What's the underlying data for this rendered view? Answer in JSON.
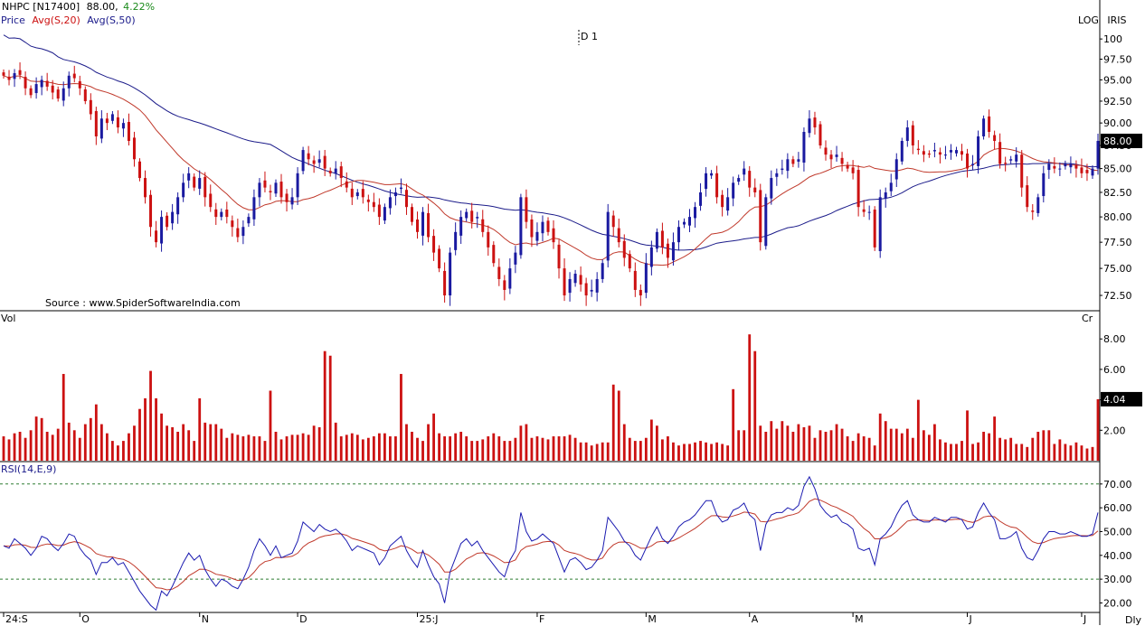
{
  "header": {
    "symbol": "NHPC [N17400]",
    "price": "88.00,",
    "change": "4.22%",
    "change_color": "#1a8a1a",
    "legend_price": "Price",
    "legend_avg20": "Avg(S,20)",
    "legend_avg50": "Avg(S,50)",
    "scale_log": "LOG",
    "brand": "IRIS",
    "marker": "D 1",
    "source": "Source : www.SpiderSoftwareIndia.com"
  },
  "colors": {
    "up": "#1a1aa0",
    "down": "#cc1111",
    "avg20": "#c0392b",
    "avg50": "#1c1c8a",
    "volume": "#cc1111",
    "rsi": "#1a1ab0",
    "rsi_signal": "#c0392b",
    "level_line": "#2e7d32"
  },
  "panels": {
    "volume_label": "Vol",
    "volume_unit": "Cr",
    "rsi_label": "RSI(14,E,9)",
    "frequency": "Dly"
  },
  "chart_data": {
    "type": "candlestick",
    "price_axis": {
      "scale": "log",
      "ticks": [
        "100",
        "97.50",
        "95.00",
        "92.50",
        "90.00",
        "87.50",
        "85.00",
        "82.50",
        "80.00",
        "77.50",
        "75.00",
        "72.50"
      ],
      "range": [
        71.2,
        101.5
      ],
      "last_price_label": "88.00"
    },
    "volume_axis": {
      "ticks": [
        "8.00",
        "6.00",
        "4.00",
        "2.00"
      ],
      "range": [
        0,
        9.2
      ],
      "last_value_label": "4.04"
    },
    "rsi_axis": {
      "ticks": [
        "70.00",
        "60.00",
        "50.00",
        "40.00",
        "30.00",
        "20.00"
      ],
      "range": [
        16,
        76
      ],
      "levels": [
        70,
        30
      ]
    },
    "x_labels": [
      {
        "label": "24:S",
        "index": 0
      },
      {
        "label": "O",
        "index": 14
      },
      {
        "label": "N",
        "index": 36
      },
      {
        "label": "D",
        "index": 54
      },
      {
        "label": "25:J",
        "index": 76
      },
      {
        "label": "F",
        "index": 98
      },
      {
        "label": "M",
        "index": 118
      },
      {
        "label": "A",
        "index": 137
      },
      {
        "label": "M",
        "index": 156
      },
      {
        "label": "J",
        "index": 177
      },
      {
        "label": "J",
        "index": 198
      }
    ],
    "close": [
      95.5,
      95.0,
      95.8,
      95.6,
      94.0,
      93.2,
      94.5,
      95.0,
      94.2,
      93.5,
      92.8,
      94.0,
      95.5,
      95.2,
      94.0,
      92.5,
      91.0,
      88.5,
      90.5,
      90.0,
      91.0,
      89.5,
      90.0,
      88.0,
      86.0,
      84.0,
      82.0,
      79.0,
      77.5,
      80.0,
      79.0,
      80.5,
      82.0,
      83.5,
      84.5,
      83.0,
      84.0,
      82.0,
      81.0,
      80.0,
      80.5,
      80.0,
      79.0,
      78.0,
      79.0,
      80.0,
      82.0,
      83.5,
      83.0,
      82.5,
      83.5,
      82.0,
      81.5,
      82.0,
      84.5,
      87.0,
      86.0,
      85.5,
      86.0,
      85.0,
      84.5,
      85.0,
      84.0,
      83.0,
      82.0,
      82.5,
      82.0,
      81.5,
      81.0,
      80.0,
      81.0,
      82.0,
      82.5,
      83.0,
      81.0,
      79.5,
      78.5,
      80.5,
      78.0,
      76.5,
      75.0,
      72.5,
      76.5,
      78.5,
      80.0,
      80.5,
      79.5,
      80.0,
      78.5,
      77.0,
      75.5,
      74.0,
      73.0,
      75.0,
      76.5,
      82.0,
      79.5,
      78.0,
      78.5,
      79.5,
      78.5,
      77.5,
      75.0,
      72.5,
      74.0,
      74.5,
      73.5,
      72.5,
      73.0,
      74.0,
      75.5,
      80.5,
      79.0,
      77.5,
      76.0,
      75.0,
      73.0,
      72.5,
      75.5,
      77.0,
      78.5,
      77.0,
      76.0,
      77.5,
      79.0,
      79.5,
      80.0,
      81.0,
      82.5,
      84.5,
      84.5,
      82.0,
      81.0,
      82.0,
      83.5,
      84.0,
      85.0,
      83.0,
      82.5,
      77.5,
      82.0,
      84.0,
      84.5,
      85.0,
      86.0,
      85.5,
      86.0,
      89.0,
      90.5,
      89.5,
      87.5,
      86.5,
      86.0,
      86.5,
      85.5,
      85.0,
      84.5,
      81.0,
      80.5,
      80.5,
      77.0,
      82.0,
      82.5,
      83.5,
      86.0,
      88.0,
      89.5,
      87.5,
      87.0,
      86.5,
      86.5,
      87.0,
      86.5,
      86.5,
      87.0,
      87.0,
      86.5,
      85.0,
      85.5,
      88.5,
      90.5,
      89.0,
      88.0,
      85.5,
      85.5,
      86.0,
      86.5,
      83.0,
      81.0,
      80.5,
      82.0,
      84.5,
      85.5,
      85.0,
      85.0,
      85.5,
      85.5,
      85.0,
      84.5,
      84.5,
      85.0,
      88.0
    ],
    "volume": [
      1.6,
      1.4,
      1.8,
      1.9,
      1.5,
      2.0,
      2.9,
      2.8,
      1.9,
      1.7,
      2.1,
      5.7,
      2.5,
      2.0,
      1.5,
      2.4,
      2.8,
      3.7,
      2.4,
      1.8,
      1.3,
      1.0,
      1.3,
      1.8,
      2.3,
      3.4,
      4.1,
      5.9,
      4.1,
      3.1,
      2.3,
      2.2,
      1.9,
      2.4,
      2.0,
      1.3,
      4.1,
      2.5,
      2.4,
      2.4,
      2.1,
      1.5,
      1.8,
      1.7,
      1.6,
      1.7,
      1.6,
      1.6,
      1.3,
      4.6,
      1.9,
      1.4,
      1.6,
      1.7,
      1.7,
      1.8,
      1.7,
      2.3,
      2.2,
      7.2,
      6.9,
      2.5,
      1.6,
      1.7,
      1.8,
      1.7,
      1.4,
      1.5,
      1.6,
      1.8,
      1.8,
      1.6,
      1.6,
      5.7,
      2.4,
      1.9,
      1.5,
      1.3,
      2.4,
      3.1,
      1.8,
      1.6,
      1.6,
      1.8,
      1.9,
      1.6,
      1.3,
      1.3,
      1.4,
      1.6,
      1.8,
      1.6,
      1.3,
      1.3,
      1.5,
      2.3,
      2.4,
      1.5,
      1.6,
      1.5,
      1.4,
      1.6,
      1.6,
      1.6,
      1.7,
      1.5,
      1.2,
      1.2,
      1.0,
      1.1,
      1.2,
      1.2,
      5.0,
      4.6,
      2.4,
      1.5,
      1.3,
      1.3,
      1.5,
      2.7,
      2.3,
      1.4,
      1.6,
      1.2,
      1.0,
      1.1,
      1.1,
      1.2,
      1.3,
      1.2,
      1.1,
      1.2,
      1.1,
      1.0,
      4.7,
      2.0,
      2.0,
      8.3,
      7.2,
      2.3,
      1.9,
      2.6,
      2.1,
      2.6,
      2.3,
      1.9,
      2.4,
      2.2,
      2.3,
      1.5,
      2.0,
      1.9,
      2.0,
      2.4,
      2.1,
      1.6,
      1.3,
      1.8,
      1.6,
      1.5,
      1.0,
      3.1,
      2.6,
      2.1,
      2.1,
      1.8,
      2.1,
      1.5,
      4.0,
      2.0,
      1.7,
      2.4,
      1.4,
      1.2,
      1.1,
      1.1,
      1.3,
      3.3,
      1.1,
      1.2,
      1.9,
      1.8,
      2.9,
      1.5,
      1.4,
      1.5,
      1.1,
      1.1,
      0.9,
      1.5,
      1.9,
      2.0,
      2.0,
      1.1,
      1.4,
      1.1,
      1.0,
      1.2,
      1.0,
      0.8,
      0.9,
      4.04
    ],
    "rsi": [
      44,
      43,
      47,
      45,
      43,
      40,
      43,
      48,
      47,
      44,
      42,
      45,
      49,
      48,
      43,
      40,
      38,
      32,
      37,
      37,
      39,
      36,
      37,
      33,
      29,
      25,
      22,
      19,
      17,
      25,
      23,
      27,
      32,
      37,
      41,
      38,
      40,
      34,
      30,
      27,
      30,
      29,
      27,
      26,
      30,
      35,
      42,
      47,
      44,
      40,
      44,
      39,
      40,
      41,
      46,
      54,
      52,
      50,
      53,
      51,
      50,
      51,
      49,
      46,
      42,
      44,
      43,
      42,
      41,
      36,
      39,
      44,
      46,
      48,
      42,
      38,
      35,
      42,
      36,
      31,
      28,
      20,
      33,
      39,
      45,
      47,
      44,
      46,
      42,
      39,
      36,
      33,
      31,
      38,
      42,
      58,
      50,
      46,
      47,
      49,
      47,
      45,
      39,
      33,
      38,
      39,
      37,
      34,
      35,
      38,
      42,
      56,
      53,
      50,
      46,
      44,
      40,
      38,
      43,
      48,
      52,
      47,
      45,
      48,
      52,
      54,
      55,
      57,
      60,
      63,
      63,
      57,
      54,
      55,
      59,
      60,
      62,
      57,
      55,
      42,
      53,
      57,
      58,
      58,
      60,
      59,
      61,
      69,
      73,
      68,
      61,
      58,
      56,
      57,
      54,
      53,
      51,
      43,
      42,
      43,
      36,
      47,
      49,
      52,
      57,
      61,
      63,
      57,
      55,
      54,
      54,
      56,
      55,
      54,
      56,
      56,
      55,
      51,
      52,
      58,
      62,
      58,
      55,
      47,
      47,
      48,
      50,
      43,
      39,
      38,
      42,
      47,
      50,
      50,
      49,
      49,
      50,
      49,
      48,
      48,
      49,
      58
    ]
  }
}
